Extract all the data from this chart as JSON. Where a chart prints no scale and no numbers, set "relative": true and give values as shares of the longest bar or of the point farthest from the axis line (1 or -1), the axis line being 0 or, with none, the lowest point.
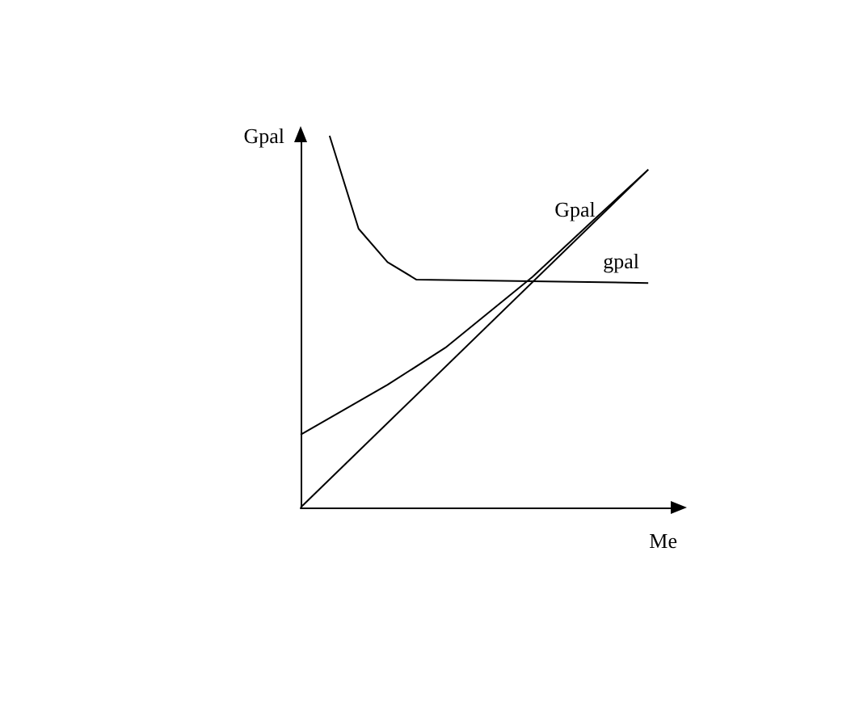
{
  "chart_data": {
    "type": "line",
    "relative": true,
    "xlabel": "Me",
    "ylabel": "Gpal",
    "categories": [
      null,
      null,
      null,
      null,
      null,
      null,
      null,
      null,
      null,
      null,
      null,
      null,
      null,
      null
    ],
    "grid": false,
    "legend": false,
    "marker": "none",
    "line_style": "solid",
    "series": [
      {
        "name": "Gpal",
        "color": "#000000",
        "values": [
          0.196,
          null,
          null,
          0.33,
          null,
          0.43,
          null,
          null,
          0.62,
          null,
          0.765,
          null,
          0.909,
          null
        ]
      },
      {
        "name": "gpal",
        "color": "#000000",
        "values": [
          null,
          1.0,
          0.75,
          0.66,
          0.613,
          null,
          null,
          null,
          null,
          null,
          null,
          null,
          0.604,
          null
        ]
      },
      {
        "color": "#000000",
        "values": [
          0,
          null,
          null,
          null,
          null,
          null,
          null,
          null,
          null,
          null,
          null,
          null,
          0.909,
          null
        ]
      }
    ]
  }
}
